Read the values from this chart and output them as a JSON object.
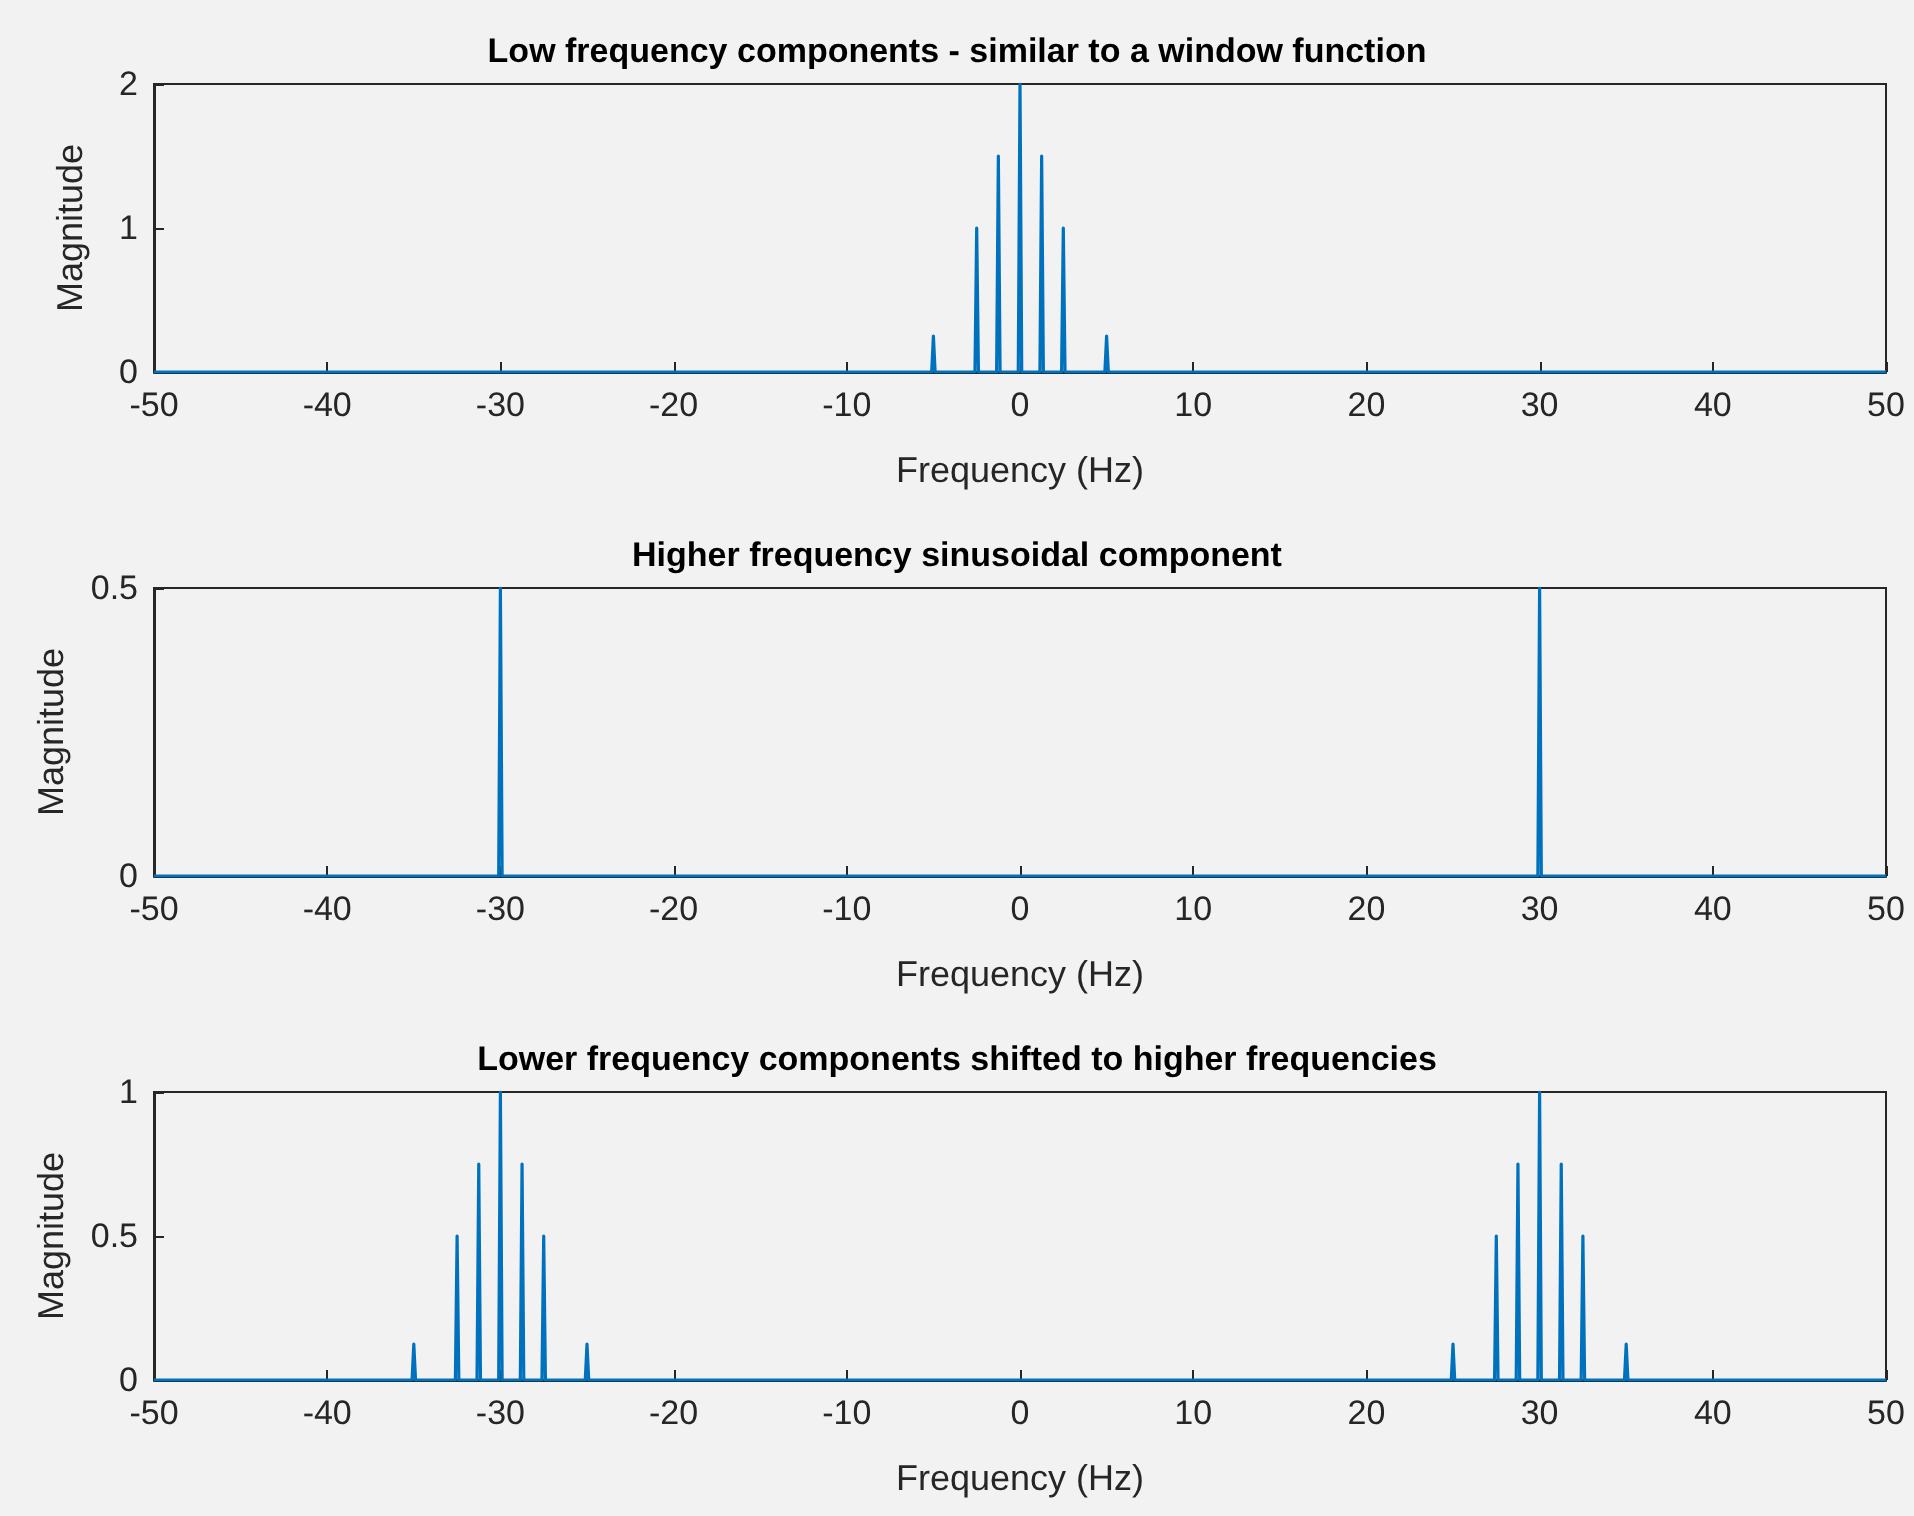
{
  "chart_data": [
    {
      "type": "line",
      "title": "Low frequency components - similar to a window function",
      "xlabel": "Frequency (Hz)",
      "ylabel": "Magnitude",
      "xlim": [
        -50,
        50
      ],
      "xticks": [
        -50,
        -40,
        -30,
        -20,
        -10,
        0,
        10,
        20,
        30,
        40,
        50
      ],
      "ylim": [
        0,
        2
      ],
      "yticks": [
        0,
        1,
        2
      ],
      "marker": "none",
      "series": [
        {
          "color": "#0072bd",
          "x": [
            -50,
            -5.1,
            -5,
            -4.9,
            -2.6,
            -2.5,
            -2.4,
            -1.35,
            -1.25,
            -1.15,
            -0.1,
            0,
            0.1,
            1.15,
            1.25,
            1.35,
            2.4,
            2.5,
            2.6,
            4.9,
            5,
            5.1,
            50
          ],
          "values": [
            0,
            0,
            0.25,
            0,
            0,
            1,
            0,
            0,
            1.5,
            0,
            0,
            2,
            0,
            0,
            1.5,
            0,
            0,
            1,
            0,
            0,
            0.25,
            0,
            0
          ]
        }
      ]
    },
    {
      "type": "line",
      "title": "Higher frequency sinusoidal component",
      "xlabel": "Frequency (Hz)",
      "ylabel": "Magnitude",
      "xlim": [
        -50,
        50
      ],
      "xticks": [
        -50,
        -40,
        -30,
        -20,
        -10,
        0,
        10,
        20,
        30,
        40,
        50
      ],
      "ylim": [
        0,
        0.5
      ],
      "yticks": [
        0,
        0.5
      ],
      "marker": "none",
      "series": [
        {
          "color": "#0072bd",
          "x": [
            -50,
            -30.1,
            -30,
            -29.9,
            29.9,
            30,
            30.1,
            50
          ],
          "values": [
            0,
            0,
            0.5,
            0,
            0,
            0.5,
            0,
            0
          ]
        }
      ]
    },
    {
      "type": "line",
      "title": "Lower frequency components shifted to higher frequencies",
      "xlabel": "Frequency (Hz)",
      "ylabel": "Magnitude",
      "xlim": [
        -50,
        50
      ],
      "xticks": [
        -50,
        -40,
        -30,
        -20,
        -10,
        0,
        10,
        20,
        30,
        40,
        50
      ],
      "ylim": [
        0,
        1
      ],
      "yticks": [
        0,
        0.5,
        1
      ],
      "marker": "none",
      "series": [
        {
          "color": "#0072bd",
          "x": [
            -50,
            -35.1,
            -35,
            -34.9,
            -32.6,
            -32.5,
            -32.4,
            -31.35,
            -31.25,
            -31.15,
            -30.1,
            -30,
            -29.9,
            -28.85,
            -28.75,
            -28.65,
            -27.6,
            -27.5,
            -27.4,
            -25.1,
            -25,
            -24.9,
            24.9,
            25,
            25.1,
            27.4,
            27.5,
            27.6,
            28.65,
            28.75,
            28.85,
            29.9,
            30,
            30.1,
            31.15,
            31.25,
            31.35,
            32.4,
            32.5,
            32.6,
            34.9,
            35,
            35.1,
            50
          ],
          "values": [
            0,
            0,
            0.125,
            0,
            0,
            0.5,
            0,
            0,
            0.75,
            0,
            0,
            1,
            0,
            0,
            0.75,
            0,
            0,
            0.5,
            0,
            0,
            0.125,
            0,
            0,
            0.125,
            0,
            0,
            0.5,
            0,
            0,
            0.75,
            0,
            0,
            1,
            0,
            0,
            0.75,
            0,
            0,
            0.5,
            0,
            0,
            0.125,
            0,
            0
          ]
        }
      ]
    }
  ]
}
